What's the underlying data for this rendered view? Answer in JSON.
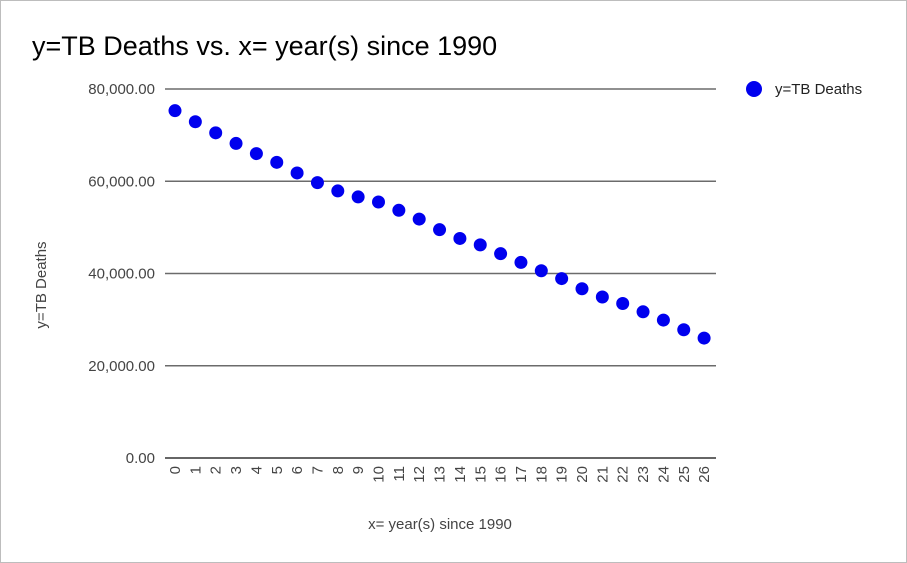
{
  "chart_data": {
    "type": "scatter",
    "title": "y=TB Deaths vs. x= year(s) since 1990",
    "xlabel": "x= year(s) since 1990",
    "ylabel": "y=TB Deaths",
    "x": [
      0,
      1,
      2,
      3,
      4,
      5,
      6,
      7,
      8,
      9,
      10,
      11,
      12,
      13,
      14,
      15,
      16,
      17,
      18,
      19,
      20,
      21,
      22,
      23,
      24,
      25,
      26
    ],
    "series": [
      {
        "name": "y=TB Deaths",
        "color": "#0000ee",
        "values": [
          75300,
          72900,
          70500,
          68200,
          66000,
          64100,
          61800,
          59700,
          57900,
          56600,
          55500,
          53700,
          51800,
          49500,
          47600,
          46200,
          44300,
          42400,
          40600,
          38900,
          36700,
          34900,
          33500,
          31700,
          29900,
          27800,
          26000
        ]
      }
    ],
    "ylim": [
      0,
      80000
    ],
    "yticks": [
      "0.00",
      "20,000.00",
      "40,000.00",
      "60,000.00",
      "80,000.00"
    ],
    "ytick_values": [
      0,
      20000,
      40000,
      60000,
      80000
    ],
    "xticks": [
      "0",
      "1",
      "2",
      "3",
      "4",
      "5",
      "6",
      "7",
      "8",
      "9",
      "10",
      "11",
      "12",
      "13",
      "14",
      "15",
      "16",
      "17",
      "18",
      "19",
      "20",
      "21",
      "22",
      "23",
      "24",
      "25",
      "26"
    ],
    "grid": true,
    "legend_position": "right"
  }
}
